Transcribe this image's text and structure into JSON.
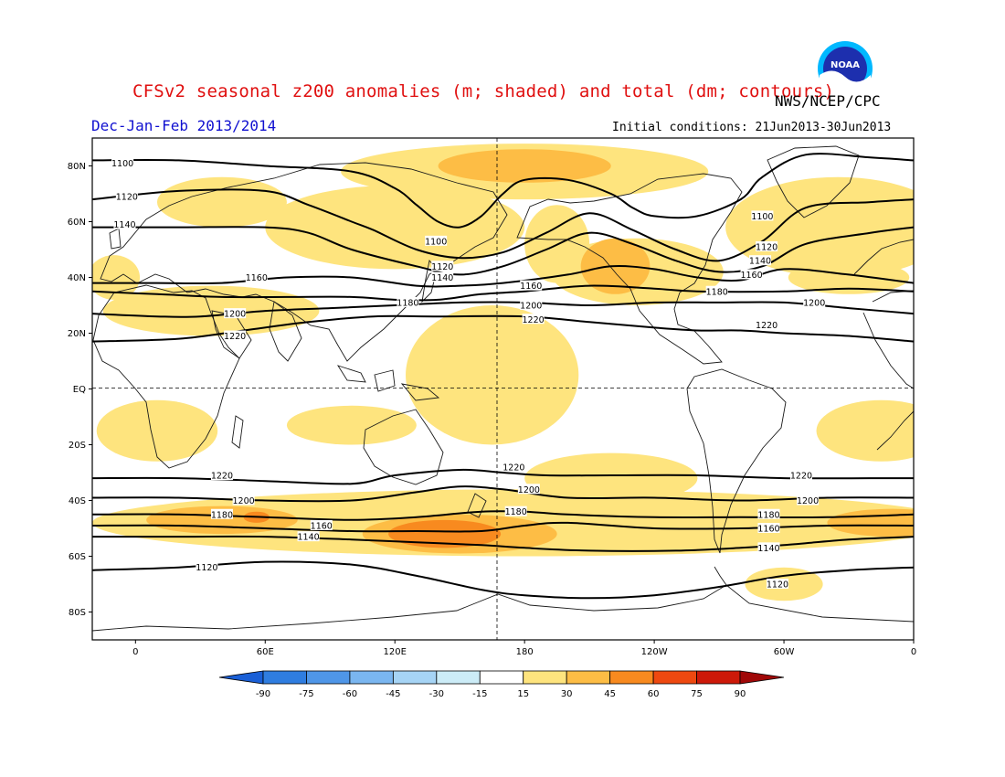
{
  "header": {
    "title": "CFSv2 seasonal z200 anomalies (m; shaded) and total (dm; contours)",
    "agency": "NWS/NCEP/CPC",
    "period": "Dec-Jan-Feb 2013/2014",
    "initial_conditions": "Initial conditions: 21Jun2013-30Jun2013",
    "logo_text": "NOAA"
  },
  "axes": {
    "y_ticks": [
      "80N",
      "60N",
      "40N",
      "20N",
      "EQ",
      "20S",
      "40S",
      "60S",
      "80S"
    ],
    "y_lat": [
      80,
      60,
      40,
      20,
      0,
      -20,
      -40,
      -60,
      -80
    ],
    "x_ticks": [
      "0",
      "60E",
      "120E",
      "180",
      "120W",
      "60W",
      "0"
    ],
    "x_lon": [
      0,
      60,
      120,
      180,
      240,
      300,
      360
    ],
    "lon_range": [
      -20,
      360
    ],
    "lat_range": [
      -90,
      90
    ]
  },
  "colorbar": {
    "labels": [
      "-90",
      "-75",
      "-60",
      "-45",
      "-30",
      "-15",
      "15",
      "30",
      "45",
      "60",
      "75",
      "90"
    ],
    "colors": [
      "#1a5fd6",
      "#2f7de0",
      "#4f96e8",
      "#7ab6f0",
      "#a6d4f5",
      "#ccecf7",
      "#ffffff",
      "#fee47e",
      "#fdbd45",
      "#f88a1f",
      "#ee4910",
      "#cd1909",
      "#a00808"
    ]
  },
  "contours": [
    {
      "label": "1100",
      "pts": [
        [
          -20,
          82
        ],
        [
          20,
          82
        ],
        [
          60,
          80
        ],
        [
          100,
          78
        ],
        [
          120,
          72
        ],
        [
          130,
          66
        ],
        [
          140,
          60
        ],
        [
          150,
          58
        ],
        [
          160,
          62
        ],
        [
          170,
          70
        ],
        [
          180,
          75
        ],
        [
          200,
          75
        ],
        [
          220,
          70
        ],
        [
          230,
          65
        ],
        [
          240,
          62
        ],
        [
          260,
          62
        ],
        [
          280,
          68
        ],
        [
          290,
          76
        ],
        [
          310,
          84
        ],
        [
          340,
          83
        ],
        [
          360,
          82
        ]
      ]
    },
    {
      "label": "1120",
      "pts": [
        [
          -20,
          68
        ],
        [
          20,
          71
        ],
        [
          60,
          71
        ],
        [
          80,
          66
        ],
        [
          100,
          60
        ],
        [
          110,
          57
        ],
        [
          130,
          50
        ],
        [
          150,
          47
        ],
        [
          170,
          49
        ],
        [
          190,
          56
        ],
        [
          210,
          63
        ],
        [
          230,
          57
        ],
        [
          250,
          50
        ],
        [
          270,
          46
        ],
        [
          290,
          53
        ],
        [
          310,
          65
        ],
        [
          340,
          67
        ],
        [
          360,
          68
        ]
      ]
    },
    {
      "label": "1140",
      "pts": [
        [
          -20,
          58
        ],
        [
          20,
          58
        ],
        [
          60,
          58
        ],
        [
          80,
          56
        ],
        [
          100,
          50
        ],
        [
          130,
          44
        ],
        [
          150,
          41
        ],
        [
          170,
          44
        ],
        [
          190,
          50
        ],
        [
          210,
          56
        ],
        [
          230,
          52
        ],
        [
          250,
          46
        ],
        [
          270,
          42
        ],
        [
          290,
          44
        ],
        [
          310,
          52
        ],
        [
          340,
          56
        ],
        [
          360,
          58
        ]
      ]
    },
    {
      "label": "1160",
      "pts": [
        [
          -20,
          38
        ],
        [
          10,
          38
        ],
        [
          40,
          38
        ],
        [
          70,
          40
        ],
        [
          100,
          40
        ],
        [
          130,
          37
        ],
        [
          150,
          37
        ],
        [
          170,
          38
        ],
        [
          200,
          41
        ],
        [
          220,
          44
        ],
        [
          240,
          43
        ],
        [
          260,
          40
        ],
        [
          280,
          39
        ],
        [
          300,
          43
        ],
        [
          330,
          41
        ],
        [
          360,
          38
        ]
      ]
    },
    {
      "label": "1180",
      "pts": [
        [
          -20,
          35
        ],
        [
          10,
          34
        ],
        [
          40,
          33
        ],
        [
          70,
          33
        ],
        [
          100,
          33
        ],
        [
          120,
          32
        ],
        [
          140,
          32
        ],
        [
          160,
          34
        ],
        [
          180,
          35
        ],
        [
          210,
          37
        ],
        [
          240,
          36
        ],
        [
          260,
          35
        ],
        [
          300,
          35
        ],
        [
          330,
          36
        ],
        [
          360,
          35
        ]
      ]
    },
    {
      "label": "1200",
      "pts": [
        [
          -20,
          27
        ],
        [
          10,
          26
        ],
        [
          30,
          26
        ],
        [
          60,
          28
        ],
        [
          90,
          29
        ],
        [
          120,
          30
        ],
        [
          150,
          31
        ],
        [
          180,
          31
        ],
        [
          210,
          30
        ],
        [
          240,
          31
        ],
        [
          270,
          31
        ],
        [
          300,
          31
        ],
        [
          330,
          29
        ],
        [
          360,
          27
        ]
      ]
    },
    {
      "label": "1220",
      "pts": [
        [
          -20,
          17
        ],
        [
          20,
          18
        ],
        [
          50,
          21
        ],
        [
          80,
          24
        ],
        [
          110,
          26
        ],
        [
          140,
          26
        ],
        [
          180,
          26
        ],
        [
          210,
          24
        ],
        [
          240,
          22
        ],
        [
          260,
          21
        ],
        [
          280,
          21
        ],
        [
          300,
          20
        ],
        [
          330,
          19
        ],
        [
          360,
          17
        ]
      ]
    },
    {
      "label": "1220",
      "pts": [
        [
          -20,
          -32
        ],
        [
          20,
          -32
        ],
        [
          60,
          -33
        ],
        [
          100,
          -34
        ],
        [
          120,
          -31
        ],
        [
          150,
          -29
        ],
        [
          170,
          -30
        ],
        [
          190,
          -31
        ],
        [
          220,
          -31
        ],
        [
          260,
          -31
        ],
        [
          300,
          -32
        ],
        [
          340,
          -32
        ],
        [
          360,
          -32
        ]
      ]
    },
    {
      "label": "1200",
      "pts": [
        [
          -20,
          -39
        ],
        [
          20,
          -39
        ],
        [
          60,
          -40
        ],
        [
          100,
          -40
        ],
        [
          130,
          -37
        ],
        [
          150,
          -35
        ],
        [
          170,
          -36
        ],
        [
          200,
          -39
        ],
        [
          240,
          -39
        ],
        [
          280,
          -40
        ],
        [
          320,
          -39
        ],
        [
          360,
          -39
        ]
      ]
    },
    {
      "label": "1180",
      "pts": [
        [
          -20,
          -45
        ],
        [
          20,
          -45
        ],
        [
          60,
          -46
        ],
        [
          100,
          -47
        ],
        [
          130,
          -46
        ],
        [
          160,
          -44
        ],
        [
          180,
          -44
        ],
        [
          200,
          -45
        ],
        [
          240,
          -46
        ],
        [
          280,
          -46
        ],
        [
          320,
          -46
        ],
        [
          360,
          -45
        ]
      ]
    },
    {
      "label": "1160",
      "pts": [
        [
          -20,
          -49
        ],
        [
          20,
          -49
        ],
        [
          60,
          -50
        ],
        [
          100,
          -51
        ],
        [
          130,
          -51
        ],
        [
          160,
          -51
        ],
        [
          180,
          -49
        ],
        [
          200,
          -48
        ],
        [
          240,
          -50
        ],
        [
          280,
          -50
        ],
        [
          320,
          -49
        ],
        [
          360,
          -49
        ]
      ]
    },
    {
      "label": "1140",
      "pts": [
        [
          -20,
          -53
        ],
        [
          20,
          -53
        ],
        [
          60,
          -53
        ],
        [
          100,
          -54
        ],
        [
          130,
          -55
        ],
        [
          160,
          -56
        ],
        [
          180,
          -57
        ],
        [
          210,
          -58
        ],
        [
          250,
          -58
        ],
        [
          280,
          -57
        ],
        [
          300,
          -56
        ],
        [
          330,
          -54
        ],
        [
          360,
          -53
        ]
      ]
    },
    {
      "label": "1120",
      "pts": [
        [
          -20,
          -65
        ],
        [
          20,
          -64
        ],
        [
          60,
          -62
        ],
        [
          100,
          -63
        ],
        [
          130,
          -67
        ],
        [
          160,
          -72
        ],
        [
          180,
          -74
        ],
        [
          210,
          -75
        ],
        [
          240,
          -74
        ],
        [
          270,
          -71
        ],
        [
          300,
          -67
        ],
        [
          330,
          -65
        ],
        [
          360,
          -64
        ]
      ]
    }
  ],
  "contour_labels": [
    {
      "text": "1100",
      "lon": -6,
      "lat": 81
    },
    {
      "text": "1120",
      "lon": -4,
      "lat": 69
    },
    {
      "text": "1140",
      "lon": -5,
      "lat": 59
    },
    {
      "text": "1100",
      "lon": 139,
      "lat": 53
    },
    {
      "text": "1120",
      "lon": 142,
      "lat": 44
    },
    {
      "text": "1140",
      "lon": 142,
      "lat": 40
    },
    {
      "text": "1160",
      "lon": 56,
      "lat": 40
    },
    {
      "text": "1160",
      "lon": 183,
      "lat": 37
    },
    {
      "text": "1180",
      "lon": 126,
      "lat": 31
    },
    {
      "text": "1200",
      "lon": 46,
      "lat": 27
    },
    {
      "text": "1200",
      "lon": 183,
      "lat": 30
    },
    {
      "text": "1220",
      "lon": 46,
      "lat": 19
    },
    {
      "text": "1220",
      "lon": 184,
      "lat": 25
    },
    {
      "text": "1100",
      "lon": 290,
      "lat": 62
    },
    {
      "text": "1120",
      "lon": 292,
      "lat": 51
    },
    {
      "text": "1140",
      "lon": 289,
      "lat": 46
    },
    {
      "text": "1160",
      "lon": 285,
      "lat": 41
    },
    {
      "text": "1180",
      "lon": 269,
      "lat": 35
    },
    {
      "text": "1200",
      "lon": 314,
      "lat": 31
    },
    {
      "text": "1220",
      "lon": 292,
      "lat": 23
    },
    {
      "text": "1220",
      "lon": 40,
      "lat": -31
    },
    {
      "text": "1220",
      "lon": 175,
      "lat": -28
    },
    {
      "text": "1220",
      "lon": 308,
      "lat": -31
    },
    {
      "text": "1200",
      "lon": 50,
      "lat": -40
    },
    {
      "text": "1200",
      "lon": 182,
      "lat": -36
    },
    {
      "text": "1200",
      "lon": 311,
      "lat": -40
    },
    {
      "text": "1180",
      "lon": 40,
      "lat": -45
    },
    {
      "text": "1180",
      "lon": 176,
      "lat": -44
    },
    {
      "text": "1180",
      "lon": 293,
      "lat": -45
    },
    {
      "text": "1160",
      "lon": 86,
      "lat": -49
    },
    {
      "text": "1160",
      "lon": 293,
      "lat": -50
    },
    {
      "text": "1140",
      "lon": 80,
      "lat": -53
    },
    {
      "text": "1140",
      "lon": 293,
      "lat": -57
    },
    {
      "text": "1120",
      "lon": 33,
      "lat": -64
    },
    {
      "text": "1120",
      "lon": 297,
      "lat": -70
    }
  ],
  "anomaly_blobs": [
    {
      "level": "15-30",
      "color": "#fee47e",
      "lon": 180,
      "lat": 78,
      "rx": 85,
      "ry": 10
    },
    {
      "level": "15-30",
      "color": "#fee47e",
      "lon": 40,
      "lat": 67,
      "rx": 30,
      "ry": 9
    },
    {
      "level": "15-30",
      "color": "#fee47e",
      "lon": 120,
      "lat": 58,
      "rx": 60,
      "ry": 15
    },
    {
      "level": "15-30",
      "color": "#fee47e",
      "lon": 195,
      "lat": 52,
      "rx": 15,
      "ry": 14
    },
    {
      "level": "15-30",
      "color": "#fee47e",
      "lon": 232,
      "lat": 42,
      "rx": 40,
      "ry": 12
    },
    {
      "level": "15-30",
      "color": "#fee47e",
      "lon": 325,
      "lat": 58,
      "rx": 52,
      "ry": 18
    },
    {
      "level": "15-30",
      "color": "#fee47e",
      "lon": 330,
      "lat": 40,
      "rx": 28,
      "ry": 6
    },
    {
      "level": "15-30",
      "color": "#fee47e",
      "lon": 35,
      "lat": 28,
      "rx": 50,
      "ry": 9
    },
    {
      "level": "15-30",
      "color": "#fee47e",
      "lon": -10,
      "lat": 40,
      "rx": 12,
      "ry": 8
    },
    {
      "level": "15-30",
      "color": "#fee47e",
      "lon": 165,
      "lat": 5,
      "rx": 40,
      "ry": 25
    },
    {
      "level": "15-30",
      "color": "#fee47e",
      "lon": 10,
      "lat": -15,
      "rx": 28,
      "ry": 11
    },
    {
      "level": "15-30",
      "color": "#fee47e",
      "lon": 100,
      "lat": -13,
      "rx": 30,
      "ry": 7
    },
    {
      "level": "15-30",
      "color": "#fee47e",
      "lon": 345,
      "lat": -15,
      "rx": 30,
      "ry": 11
    },
    {
      "level": "15-30",
      "color": "#fee47e",
      "lon": 180,
      "lat": -48,
      "rx": 200,
      "ry": 12
    },
    {
      "level": "15-30",
      "color": "#fee47e",
      "lon": 220,
      "lat": -32,
      "rx": 40,
      "ry": 9
    },
    {
      "level": "15-30",
      "color": "#fee47e",
      "lon": 300,
      "lat": -70,
      "rx": 18,
      "ry": 6
    },
    {
      "level": "30-45",
      "color": "#fdbd45",
      "lon": 180,
      "lat": 80,
      "rx": 40,
      "ry": 6
    },
    {
      "level": "30-45",
      "color": "#fdbd45",
      "lon": 222,
      "lat": 44,
      "rx": 16,
      "ry": 10
    },
    {
      "level": "30-45",
      "color": "#fdbd45",
      "lon": 40,
      "lat": -47,
      "rx": 35,
      "ry": 5
    },
    {
      "level": "30-45",
      "color": "#fdbd45",
      "lon": 150,
      "lat": -52,
      "rx": 45,
      "ry": 7
    },
    {
      "level": "30-45",
      "color": "#fdbd45",
      "lon": 350,
      "lat": -48,
      "rx": 30,
      "ry": 5
    },
    {
      "level": "45-60",
      "color": "#f88a1f",
      "lon": 143,
      "lat": -52,
      "rx": 26,
      "ry": 5
    },
    {
      "level": "45-60",
      "color": "#f88a1f",
      "lon": 56,
      "lat": -46,
      "rx": 6,
      "ry": 2
    }
  ],
  "colors": {
    "frame": "#000000",
    "coast": "#1a1a1a",
    "title": "#e01010",
    "period": "#1010d0"
  }
}
